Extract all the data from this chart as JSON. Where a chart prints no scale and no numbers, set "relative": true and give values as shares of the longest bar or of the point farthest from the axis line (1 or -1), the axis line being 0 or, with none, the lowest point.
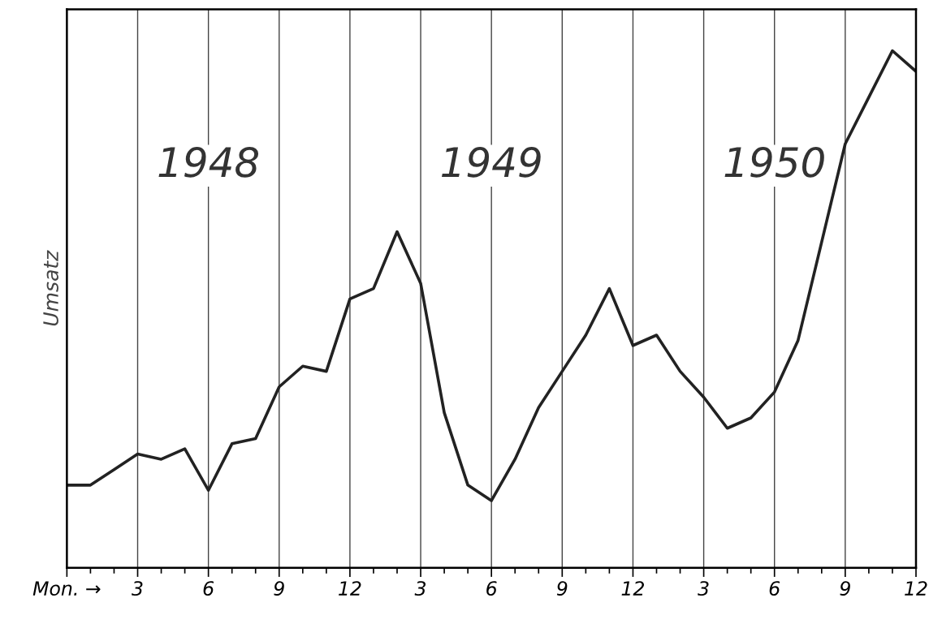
{
  "chart_data": {
    "type": "line",
    "relative": true,
    "ylabel": "Umsatz",
    "annotations": [
      "1948",
      "1949",
      "1950"
    ],
    "x": [
      "1947-12",
      "1948-01",
      "1948-02",
      "1948-03",
      "1948-04",
      "1948-05",
      "1948-06",
      "1948-07",
      "1948-08",
      "1948-09",
      "1948-10",
      "1948-11",
      "1948-12",
      "1949-01",
      "1949-02",
      "1949-03",
      "1949-04",
      "1949-05",
      "1949-06",
      "1949-07",
      "1949-08",
      "1949-09",
      "1949-10",
      "1949-11",
      "1949-12",
      "1950-01",
      "1950-02",
      "1950-03",
      "1950-04",
      "1950-05",
      "1950-06",
      "1950-07",
      "1950-08",
      "1950-09",
      "1950-10",
      "1950-11",
      "1950-12"
    ],
    "series": [
      {
        "color": "#222222",
        "values": [
          0.16,
          0.16,
          0.19,
          0.22,
          0.21,
          0.23,
          0.15,
          0.24,
          0.25,
          0.35,
          0.39,
          0.38,
          0.52,
          0.54,
          0.65,
          0.55,
          0.3,
          0.16,
          0.13,
          0.21,
          0.31,
          0.38,
          0.45,
          0.54,
          0.43,
          0.45,
          0.38,
          0.33,
          0.27,
          0.29,
          0.34,
          0.44,
          0.63,
          0.82,
          0.91,
          1,
          0.96
        ]
      }
    ],
    "xlim": [
      "1947-12",
      "1950-12"
    ],
    "xticks": [
      {
        "value": "1947-12",
        "label": "Mon. →"
      },
      {
        "value": "1948-01",
        "label": null
      },
      {
        "value": "1948-02",
        "label": null
      },
      {
        "value": "1948-03",
        "label": "3"
      },
      {
        "value": "1948-04",
        "label": null
      },
      {
        "value": "1948-05",
        "label": null
      },
      {
        "value": "1948-06",
        "label": "6"
      },
      {
        "value": "1948-07",
        "label": null
      },
      {
        "value": "1948-08",
        "label": null
      },
      {
        "value": "1948-09",
        "label": "9"
      },
      {
        "value": "1948-10",
        "label": null
      },
      {
        "value": "1948-11",
        "label": null
      },
      {
        "value": "1948-12",
        "label": "12"
      },
      {
        "value": "1949-01",
        "label": null
      },
      {
        "value": "1949-02",
        "label": null
      },
      {
        "value": "1949-03",
        "label": "3"
      },
      {
        "value": "1949-04",
        "label": null
      },
      {
        "value": "1949-05",
        "label": null
      },
      {
        "value": "1949-06",
        "label": "6"
      },
      {
        "value": "1949-07",
        "label": null
      },
      {
        "value": "1949-08",
        "label": null
      },
      {
        "value": "1949-09",
        "label": "9"
      },
      {
        "value": "1949-10",
        "label": null
      },
      {
        "value": "1949-11",
        "label": null
      },
      {
        "value": "1949-12",
        "label": "12"
      },
      {
        "value": "1950-01",
        "label": null
      },
      {
        "value": "1950-02",
        "label": null
      },
      {
        "value": "1950-03",
        "label": "3"
      },
      {
        "value": "1950-04",
        "label": null
      },
      {
        "value": "1950-05",
        "label": null
      },
      {
        "value": "1950-06",
        "label": "6"
      },
      {
        "value": "1950-07",
        "label": null
      },
      {
        "value": "1950-08",
        "label": null
      },
      {
        "value": "1950-09",
        "label": "9"
      },
      {
        "value": "1950-10",
        "label": null
      },
      {
        "value": "1950-11",
        "label": null
      },
      {
        "value": "1950-12",
        "label": "12"
      }
    ],
    "grid": "x",
    "marker": "none",
    "line_style": "solid",
    "tick_labels": "x"
  }
}
